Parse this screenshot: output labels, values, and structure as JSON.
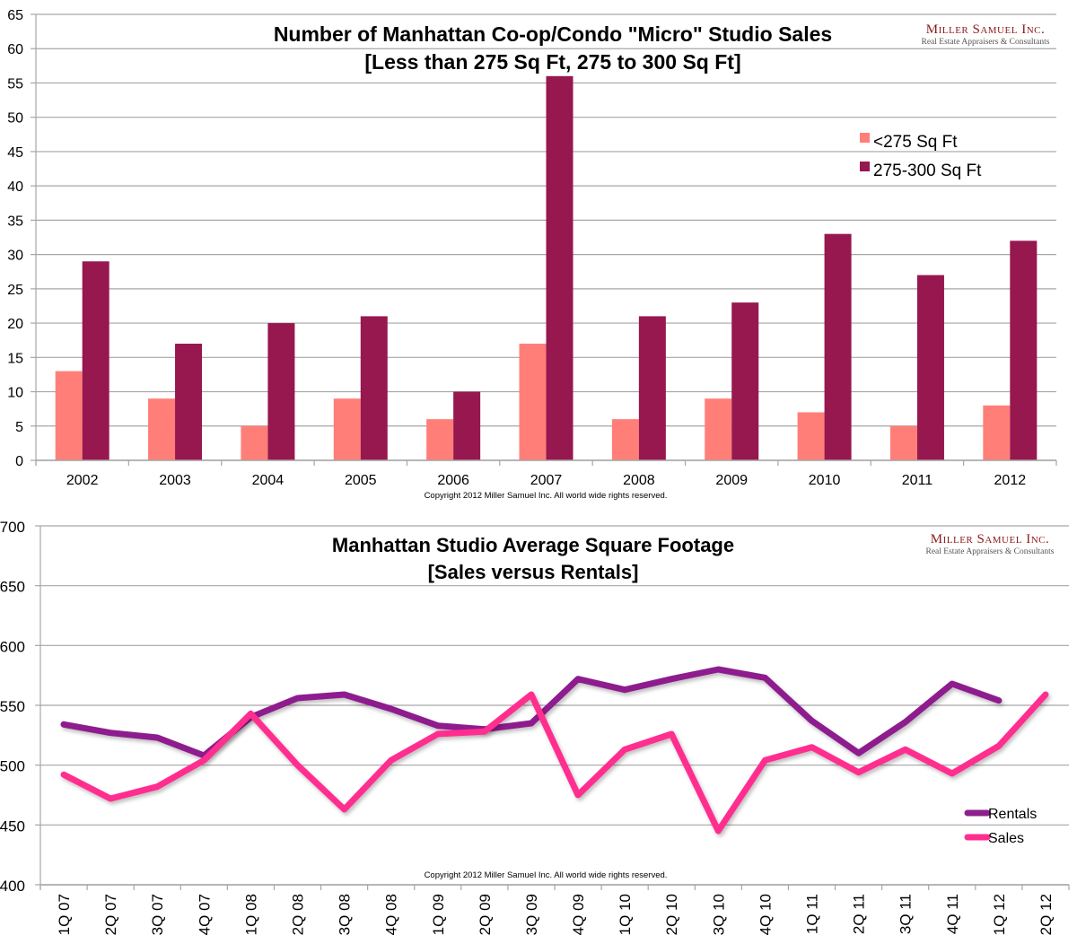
{
  "chart_data": [
    {
      "type": "bar",
      "title": "Number of Manhattan Co-op/Condo \"Micro\" Studio Sales",
      "subtitle": "[Less than 275 Sq Ft, 275 to 300 Sq Ft]",
      "xlabel": "",
      "ylabel": "",
      "ylim": [
        0,
        65
      ],
      "yticks": [
        0,
        5,
        10,
        15,
        20,
        25,
        30,
        35,
        40,
        45,
        50,
        55,
        60,
        65
      ],
      "grid": true,
      "legend": "right",
      "categories": [
        "2002",
        "2003",
        "2004",
        "2005",
        "2006",
        "2007",
        "2008",
        "2009",
        "2010",
        "2011",
        "2012"
      ],
      "series": [
        {
          "name": "<275 Sq Ft",
          "color": "#ff7f78",
          "values": [
            13,
            9,
            5,
            9,
            6,
            17,
            6,
            9,
            7,
            5,
            8
          ]
        },
        {
          "name": "275-300 Sq Ft",
          "color": "#97174f",
          "values": [
            29,
            17,
            20,
            21,
            10,
            56,
            21,
            23,
            33,
            27,
            32
          ]
        }
      ],
      "copyright": "Copyright 2012 Miller Samuel Inc.  All world wide rights reserved.",
      "logo": {
        "name": "Miller Samuel Inc.",
        "tagline": "Real Estate Appraisers & Consultants"
      }
    },
    {
      "type": "line",
      "title": "Manhattan Studio Average Square Footage",
      "subtitle": "[Sales versus Rentals]",
      "xlabel": "",
      "ylabel": "",
      "ylim": [
        400,
        700
      ],
      "yticks": [
        400,
        450,
        500,
        550,
        600,
        650,
        700
      ],
      "grid": true,
      "legend": "bottom-right",
      "categories": [
        "1Q 07",
        "2Q 07",
        "3Q 07",
        "4Q 07",
        "1Q 08",
        "2Q 08",
        "3Q 08",
        "4Q 08",
        "1Q 09",
        "2Q 09",
        "3Q 09",
        "4Q 09",
        "1Q 10",
        "2Q 10",
        "3Q 10",
        "4Q 10",
        "1Q 11",
        "2Q 11",
        "3Q 11",
        "4Q 11",
        "1Q 12",
        "2Q 12"
      ],
      "series": [
        {
          "name": "Rentals",
          "color": "#8e1f8e",
          "values": [
            534,
            527,
            523,
            508,
            540,
            556,
            559,
            547,
            533,
            530,
            535,
            572,
            563,
            572,
            580,
            573,
            537,
            510,
            536,
            568,
            554,
            null
          ]
        },
        {
          "name": "Sales",
          "color": "#ff2d8f",
          "values": [
            492,
            472,
            482,
            504,
            543,
            500,
            463,
            504,
            526,
            528,
            559,
            475,
            513,
            526,
            445,
            504,
            515,
            494,
            513,
            493,
            516,
            559
          ]
        }
      ],
      "copyright": "Copyright 2012 Miller Samuel Inc.  All world wide rights reserved.",
      "logo": {
        "name": "Miller Samuel Inc.",
        "tagline": "Real Estate Appraisers & Consultants"
      }
    }
  ]
}
